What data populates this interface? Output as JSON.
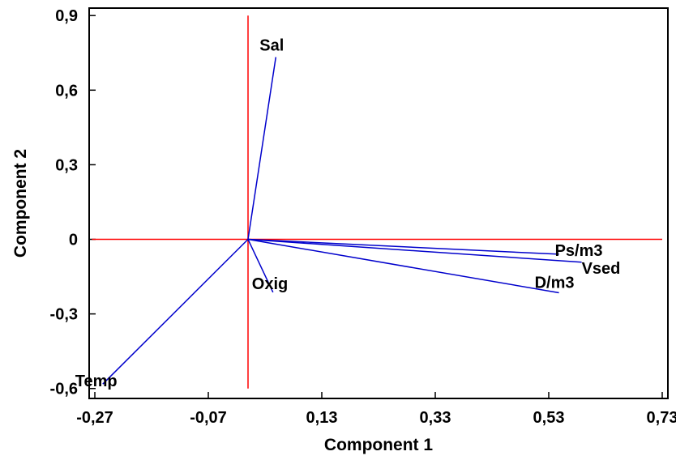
{
  "chart_data": {
    "type": "biplot",
    "title": "",
    "xlabel": "Component 1",
    "ylabel": "Component 2",
    "xlim": [
      -0.28,
      0.74
    ],
    "ylim": [
      -0.64,
      0.93
    ],
    "xticks": [
      -0.27,
      -0.07,
      0.13,
      0.33,
      0.53,
      0.73
    ],
    "xtick_labels": [
      "-0,27",
      "-0,07",
      "0,13",
      "0,33",
      "0,53",
      "0,73"
    ],
    "yticks": [
      0.9,
      0.6,
      0.3,
      0,
      -0.3,
      -0.6
    ],
    "ytick_labels": [
      "0,9",
      "0,6",
      "0,3",
      "0",
      "-0,3",
      "-0,6"
    ],
    "grid": false,
    "reference_lines": {
      "x": 0,
      "y": 0,
      "color": "#ff0000"
    },
    "vector_color": "#0000cc",
    "vectors": [
      {
        "name": "Sal",
        "x": 0.049,
        "y": 0.733
      },
      {
        "name": "Ps/m3",
        "x": 0.548,
        "y": -0.06
      },
      {
        "name": "Vsed",
        "x": 0.588,
        "y": -0.092
      },
      {
        "name": "D/m3",
        "x": 0.548,
        "y": -0.215
      },
      {
        "name": "Oxig",
        "x": 0.044,
        "y": -0.213
      },
      {
        "name": "Temp",
        "x": -0.256,
        "y": -0.582
      }
    ]
  }
}
